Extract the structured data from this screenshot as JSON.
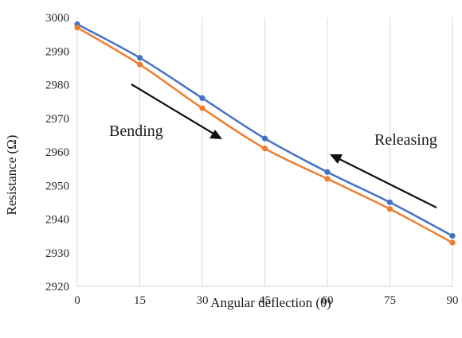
{
  "chart_data": {
    "type": "line",
    "xlabel": "Angular deflection (θ)",
    "ylabel": "Resistance (Ω)",
    "x": [
      0,
      15,
      30,
      45,
      60,
      75,
      90
    ],
    "xlim": [
      0,
      90
    ],
    "ylim": [
      2920,
      3000
    ],
    "x_ticks": [
      "0",
      "15",
      "30",
      "45",
      "60",
      "75",
      "90"
    ],
    "y_ticks": [
      "2920",
      "2930",
      "2940",
      "2950",
      "2960",
      "2970",
      "2980",
      "2990",
      "3000"
    ],
    "grid": "vertical",
    "series": [
      {
        "color": "#4472C4",
        "values": [
          2998,
          2988,
          2976,
          2964,
          2954,
          2945,
          2935
        ]
      },
      {
        "color": "#ED7D31",
        "values": [
          2997,
          2986,
          2973,
          2961,
          2952,
          2943,
          2933
        ]
      }
    ],
    "annotations": [
      {
        "text": "Bending",
        "direction": "down-right"
      },
      {
        "text": "Releasing",
        "direction": "up-left"
      }
    ]
  }
}
